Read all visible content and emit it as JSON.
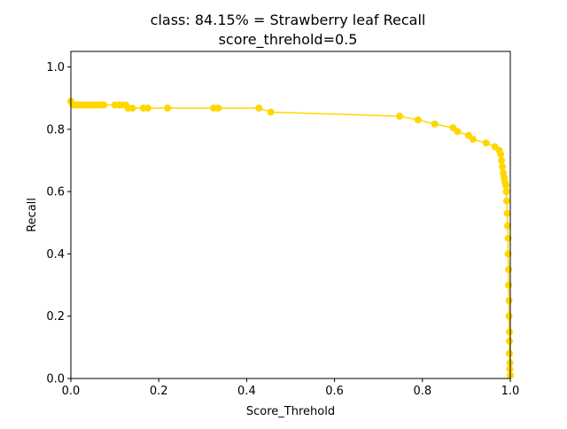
{
  "chart_data": {
    "type": "line",
    "title": "class: 84.15% = Strawberry leaf Recall",
    "subtitle": "score_threhold=0.5",
    "xlabel": "Score_Threhold",
    "ylabel": "Recall",
    "xlim": [
      0.0,
      1.0
    ],
    "ylim": [
      0.0,
      1.05
    ],
    "x_ticks": [
      "0.0",
      "0.2",
      "0.4",
      "0.6",
      "0.8",
      "1.0"
    ],
    "y_ticks": [
      "0.0",
      "0.2",
      "0.4",
      "0.6",
      "0.8",
      "1.0"
    ],
    "grid": false,
    "legend": "none",
    "color": "#FFD700",
    "series": [
      {
        "x": [
          0.0,
          0.005,
          0.01,
          0.015,
          0.02,
          0.025,
          0.03,
          0.035,
          0.04,
          0.045,
          0.05,
          0.055,
          0.06,
          0.065,
          0.07,
          0.075,
          0.1,
          0.11,
          0.115,
          0.125,
          0.13,
          0.14,
          0.165,
          0.175,
          0.22,
          0.325,
          0.335,
          0.428,
          0.455,
          0.748,
          0.79,
          0.828,
          0.87,
          0.88,
          0.905,
          0.915,
          0.945,
          0.965,
          0.975,
          0.978,
          0.98,
          0.982,
          0.984,
          0.986,
          0.988,
          0.99,
          0.991,
          0.992,
          0.993,
          0.994,
          0.995,
          0.995,
          0.996,
          0.996,
          0.997,
          0.997,
          0.998,
          0.998,
          0.998,
          0.999,
          0.999,
          1.0
        ],
        "y": [
          0.89,
          0.878,
          0.878,
          0.878,
          0.878,
          0.878,
          0.878,
          0.878,
          0.878,
          0.878,
          0.878,
          0.878,
          0.878,
          0.878,
          0.878,
          0.878,
          0.878,
          0.878,
          0.878,
          0.878,
          0.868,
          0.868,
          0.868,
          0.868,
          0.868,
          0.868,
          0.868,
          0.868,
          0.855,
          0.842,
          0.83,
          0.817,
          0.805,
          0.793,
          0.78,
          0.768,
          0.756,
          0.744,
          0.732,
          0.72,
          0.7,
          0.68,
          0.66,
          0.645,
          0.63,
          0.62,
          0.6,
          0.57,
          0.53,
          0.49,
          0.45,
          0.4,
          0.35,
          0.3,
          0.25,
          0.2,
          0.15,
          0.12,
          0.08,
          0.05,
          0.03,
          0.01
        ]
      }
    ]
  }
}
